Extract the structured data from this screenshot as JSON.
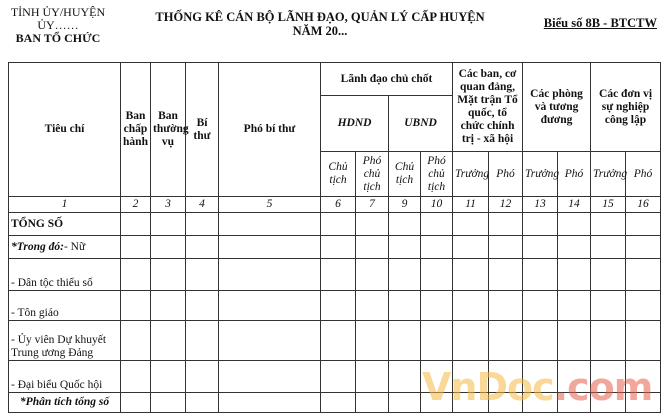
{
  "header": {
    "org_line1": "TỈNH ỦY/HUYỆN ỦY……",
    "org_line2": "BAN TỔ CHỨC",
    "title_line1": "THỐNG KÊ CÁN BỘ LÃNH ĐẠO, QUẢN LÝ CẤP HUYỆN",
    "title_line2": "NĂM 20...",
    "form_code": "Biểu số 8B - BTCTW"
  },
  "table": {
    "headers": {
      "tieu_chi": "Tiêu chí",
      "ban_chap_hanh": "Ban chấp hành",
      "ban_thuong_vu": "Ban thường vụ",
      "bi_thu": "Bí thư",
      "pho_bi_thu": "Phó bí thư",
      "lanh_dao": "Lãnh đạo chủ chốt",
      "hdnd": "HDND",
      "ubnd": "UBND",
      "cac_ban": "Các ban, cơ quan đảng, Mặt trận Tổ quốc, tổ chức chính trị - xã hội",
      "cac_phong": "Các phòng và tương đương",
      "cac_don_vi": "Các đơn vị sự nghiệp công lập",
      "chu_tich": "Chủ tịch",
      "pho_chu_tich": "Phó chủ tịch",
      "truong": "Trưởng",
      "pho": "Phó"
    },
    "column_numbers": [
      "1",
      "2",
      "3",
      "4",
      "5",
      "6",
      "7",
      "9",
      "10",
      "11",
      "12",
      "13",
      "14",
      "15",
      "16"
    ],
    "rows": [
      {
        "label": "TỔNG SỐ"
      },
      {
        "label_prefix": "*Trong đó:",
        "label": "- Nữ"
      },
      {
        "label": "- Dân tộc thiểu số"
      },
      {
        "label": "- Tôn giáo"
      },
      {
        "label": "- Ủy viên Dự khuyết Trung ương Đảng"
      },
      {
        "label": "- Đại biểu Quốc hội"
      },
      {
        "label": "*Phân tích tổng số"
      }
    ]
  },
  "watermark": {
    "part1": "VnDoc",
    "part2": ".com"
  }
}
